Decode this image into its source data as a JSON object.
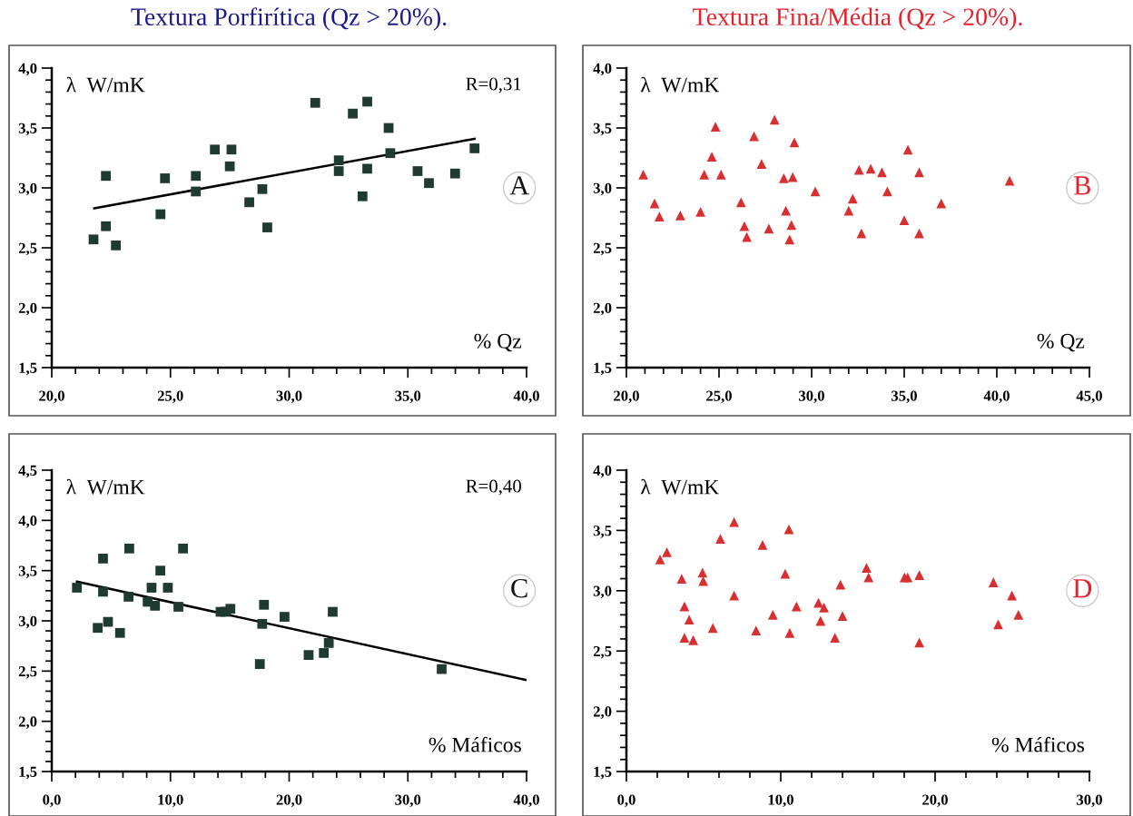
{
  "chart_data": [
    {
      "type": "scatter",
      "title": "Textura Porfirítica (Qz > 20%).",
      "ylabel": "λ  W/mK",
      "xlabel": "% Qz",
      "annotations": [
        "R=0,31",
        "A"
      ],
      "grid": false,
      "legend": false,
      "xlim": [
        20,
        40
      ],
      "xticks": [
        {
          "value": 20,
          "label": "20,0"
        },
        {
          "value": 25,
          "label": "25,0"
        },
        {
          "value": 30,
          "label": "30,0"
        },
        {
          "value": 35,
          "label": "35,0"
        },
        {
          "value": 40,
          "label": "40,0"
        }
      ],
      "ylim": [
        1.5,
        4.0
      ],
      "yticks": [
        {
          "value": 1.5,
          "label": "1,5"
        },
        {
          "value": 2.0,
          "label": "2,0"
        },
        {
          "value": 2.5,
          "label": "2,5"
        },
        {
          "value": 3.0,
          "label": "3,0"
        },
        {
          "value": 3.5,
          "label": "3,5"
        },
        {
          "value": 4.0,
          "label": "4,0"
        }
      ],
      "series": [
        {
          "marker": "square",
          "color": "#1f3a30",
          "x": [
            21.76,
            22.28,
            22.28,
            22.7,
            24.58,
            24.77,
            26.07,
            26.07,
            26.87,
            27.57,
            27.5,
            28.32,
            28.87,
            29.08,
            31.1,
            32.09,
            32.09,
            32.68,
            33.29,
            33.29,
            33.09,
            34.19,
            34.26,
            35.41,
            35.89,
            36.99,
            37.81
          ],
          "values": [
            2.57,
            3.1,
            2.68,
            2.52,
            2.78,
            3.08,
            3.1,
            2.97,
            3.32,
            3.32,
            3.18,
            2.88,
            2.99,
            2.67,
            3.71,
            3.23,
            3.14,
            3.62,
            3.72,
            3.16,
            2.93,
            3.5,
            3.29,
            3.14,
            3.04,
            3.12,
            3.33
          ]
        },
        {
          "type": "line",
          "color": "#000000",
          "x": [
            21.79,
            37.81
          ],
          "values": [
            2.83,
            3.41
          ]
        }
      ]
    },
    {
      "type": "scatter",
      "title": "Textura Fina/Média (Qz > 20%).",
      "ylabel": "λ  W/mK",
      "xlabel": "% Qz",
      "annotations": [
        "B"
      ],
      "grid": false,
      "legend": false,
      "xlim": [
        20,
        45
      ],
      "xticks": [
        {
          "value": 20,
          "label": "20,0"
        },
        {
          "value": 25,
          "label": "25,0"
        },
        {
          "value": 30,
          "label": "30,0"
        },
        {
          "value": 35,
          "label": "35,0"
        },
        {
          "value": 40,
          "label": "40,0"
        },
        {
          "value": 45,
          "label": "45,0"
        }
      ],
      "ylim": [
        1.5,
        4.0
      ],
      "yticks": [
        {
          "value": 1.5,
          "label": "1,5"
        },
        {
          "value": 2.0,
          "label": "2,0"
        },
        {
          "value": 2.5,
          "label": "2,5"
        },
        {
          "value": 3.0,
          "label": "3,0"
        },
        {
          "value": 3.5,
          "label": "3,5"
        },
        {
          "value": 4.0,
          "label": "4,0"
        }
      ],
      "series": [
        {
          "marker": "triangle",
          "color": "#d83030",
          "x": [
            20.91,
            21.52,
            21.78,
            22.91,
            24.0,
            24.2,
            24.61,
            24.81,
            25.11,
            26.19,
            26.37,
            26.5,
            26.89,
            27.3,
            27.69,
            28.0,
            28.5,
            28.61,
            28.81,
            28.91,
            28.98,
            29.07,
            30.2,
            32.0,
            32.22,
            32.56,
            32.69,
            33.19,
            33.8,
            34.09,
            35.0,
            35.2,
            35.81,
            35.81,
            37.0,
            40.69
          ],
          "values": [
            3.11,
            2.87,
            2.76,
            2.77,
            2.8,
            3.11,
            3.26,
            3.51,
            3.11,
            2.88,
            2.68,
            2.59,
            3.43,
            3.2,
            2.66,
            3.57,
            3.08,
            2.81,
            2.57,
            2.69,
            3.09,
            3.38,
            2.97,
            2.81,
            2.91,
            3.15,
            2.62,
            3.16,
            3.13,
            2.97,
            2.73,
            3.32,
            3.13,
            2.62,
            2.87,
            3.06
          ]
        }
      ]
    },
    {
      "type": "scatter",
      "ylabel": "λ  W/mK",
      "xlabel": "% Máficos",
      "annotations": [
        "R=0,40",
        "C"
      ],
      "grid": false,
      "legend": false,
      "xlim": [
        0,
        40
      ],
      "xticks": [
        {
          "value": 0,
          "label": "0,0"
        },
        {
          "value": 10,
          "label": "10,0"
        },
        {
          "value": 20,
          "label": "20,0"
        },
        {
          "value": 30,
          "label": "30,0"
        },
        {
          "value": 40,
          "label": "40,0"
        }
      ],
      "ylim": [
        1.5,
        4.5
      ],
      "yticks": [
        {
          "value": 1.5,
          "label": "1,5"
        },
        {
          "value": 2.0,
          "label": "2,0"
        },
        {
          "value": 2.5,
          "label": "2,5"
        },
        {
          "value": 3.0,
          "label": "3,0"
        },
        {
          "value": 3.5,
          "label": "3,5"
        },
        {
          "value": 4.0,
          "label": "4,0"
        },
        {
          "value": 4.5,
          "label": "4,5"
        }
      ],
      "series": [
        {
          "marker": "square",
          "color": "#1f3a30",
          "x": [
            2.12,
            3.87,
            4.32,
            4.32,
            4.74,
            5.75,
            6.47,
            6.53,
            8.08,
            8.41,
            8.7,
            9.15,
            9.78,
            10.67,
            11.06,
            14.22,
            14.63,
            15.05,
            17.53,
            17.73,
            17.88,
            19.61,
            21.64,
            22.92,
            23.34,
            23.67,
            32.85
          ],
          "values": [
            3.33,
            2.93,
            3.62,
            3.29,
            2.99,
            2.88,
            3.24,
            3.72,
            3.19,
            3.33,
            3.15,
            3.5,
            3.33,
            3.14,
            3.72,
            3.09,
            3.09,
            3.12,
            2.57,
            2.97,
            3.16,
            3.04,
            2.66,
            2.68,
            2.78,
            3.09,
            2.52
          ]
        },
        {
          "type": "line",
          "color": "#000000",
          "x": [
            2.12,
            40.0
          ],
          "values": [
            3.39,
            2.41
          ]
        }
      ]
    },
    {
      "type": "scatter",
      "ylabel": "λ  W/mK",
      "xlabel": "% Máficos",
      "annotations": [
        "D"
      ],
      "grid": false,
      "legend": false,
      "xlim": [
        0,
        30
      ],
      "xticks": [
        {
          "value": 0,
          "label": "0,0"
        },
        {
          "value": 10,
          "label": "10,0"
        },
        {
          "value": 20,
          "label": "20,0"
        },
        {
          "value": 30,
          "label": "30,0"
        }
      ],
      "ylim": [
        1.5,
        4.0
      ],
      "yticks": [
        {
          "value": 1.5,
          "label": "1,5"
        },
        {
          "value": 2.0,
          "label": "2,0"
        },
        {
          "value": 2.5,
          "label": "2,5"
        },
        {
          "value": 3.0,
          "label": "3,0"
        },
        {
          "value": 3.5,
          "label": "3,5"
        },
        {
          "value": 4.0,
          "label": "4,0"
        }
      ],
      "series": [
        {
          "marker": "triangle",
          "color": "#d83030",
          "x": [
            2.18,
            2.62,
            3.58,
            3.76,
            3.76,
            4.07,
            4.33,
            4.93,
            4.98,
            5.6,
            6.09,
            6.98,
            6.98,
            8.4,
            8.82,
            9.49,
            10.29,
            10.53,
            10.58,
            11.02,
            12.44,
            12.58,
            12.8,
            13.51,
            13.87,
            14.0,
            15.56,
            15.69,
            18.02,
            18.22,
            18.98,
            18.98,
            23.78,
            24.09,
            24.98,
            25.4
          ],
          "values": [
            3.26,
            3.32,
            3.1,
            2.87,
            2.61,
            2.76,
            2.59,
            3.15,
            3.08,
            2.69,
            3.43,
            3.57,
            2.96,
            2.67,
            3.38,
            2.8,
            3.14,
            3.51,
            2.65,
            2.87,
            2.9,
            2.75,
            2.86,
            2.61,
            3.05,
            2.79,
            3.19,
            3.11,
            3.11,
            3.11,
            3.13,
            2.57,
            3.07,
            2.72,
            2.96,
            2.8
          ]
        }
      ]
    }
  ]
}
